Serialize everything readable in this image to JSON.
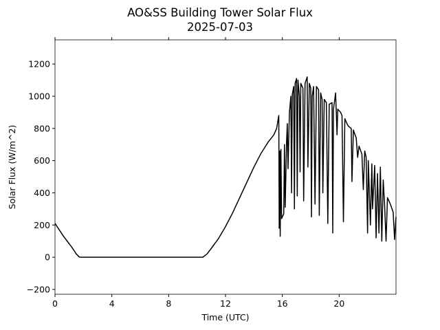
{
  "chart_data": {
    "type": "line",
    "title": "AO&SS Building Tower Solar Flux",
    "subtitle": "2025-07-03",
    "xlabel": "Time (UTC)",
    "ylabel": "Solar Flux (W/m^2)",
    "color": "#000000",
    "xlim": [
      0,
      24
    ],
    "xticks": [
      0,
      4,
      8,
      12,
      16,
      20
    ],
    "ylim": [
      -230,
      1350
    ],
    "yticks": [
      {
        "value": -200,
        "label": "−200"
      },
      0,
      200,
      400,
      600,
      800,
      1000,
      1200
    ],
    "x": [
      0,
      0.3,
      0.6,
      0.9,
      1.2,
      1.5,
      1.7,
      1.8,
      10.4,
      10.7,
      11,
      11.5,
      12,
      12.5,
      13,
      13.5,
      14,
      14.5,
      15,
      15.4,
      15.6,
      15.75,
      15.78,
      15.82,
      15.85,
      15.9,
      15.95,
      16.1,
      16.15,
      16.2,
      16.3,
      16.35,
      16.4,
      16.5,
      16.6,
      16.65,
      16.7,
      16.8,
      16.85,
      16.9,
      17,
      17.05,
      17.1,
      17.2,
      17.25,
      17.3,
      17.45,
      17.5,
      17.6,
      17.75,
      17.8,
      17.9,
      18,
      18.05,
      18.1,
      18.2,
      18.3,
      18.4,
      18.55,
      18.6,
      18.7,
      18.8,
      18.85,
      18.95,
      19.1,
      19.2,
      19.3,
      19.5,
      19.55,
      19.6,
      19.75,
      19.85,
      19.9,
      20.1,
      20.2,
      20.3,
      20.4,
      20.6,
      20.7,
      20.85,
      20.9,
      21,
      21.2,
      21.3,
      21.4,
      21.6,
      21.7,
      21.8,
      21.9,
      22,
      22.05,
      22.2,
      22.3,
      22.35,
      22.5,
      22.6,
      22.7,
      22.8,
      22.9,
      23,
      23.1,
      23.2,
      23.3,
      23.4,
      23.6,
      23.8,
      23.9,
      24
    ],
    "values": [
      210,
      170,
      130,
      95,
      60,
      20,
      2,
      0,
      0,
      20,
      55,
      115,
      190,
      275,
      370,
      465,
      560,
      645,
      715,
      760,
      800,
      880,
      180,
      660,
      130,
      670,
      240,
      270,
      700,
      310,
      720,
      830,
      550,
      900,
      1000,
      400,
      1010,
      1060,
      300,
      1080,
      1110,
      380,
      1100,
      1000,
      530,
      1080,
      1050,
      350,
      1080,
      1120,
      560,
      1080,
      1050,
      250,
      1000,
      1060,
      330,
      1060,
      1040,
      260,
      1020,
      980,
      400,
      980,
      960,
      210,
      950,
      960,
      150,
      920,
      1020,
      760,
      920,
      900,
      880,
      220,
      860,
      820,
      810,
      800,
      470,
      790,
      740,
      620,
      690,
      640,
      420,
      660,
      620,
      150,
      600,
      200,
      580,
      300,
      570,
      120,
      520,
      150,
      560,
      100,
      480,
      320,
      100,
      370,
      330,
      280,
      110,
      250
    ]
  }
}
